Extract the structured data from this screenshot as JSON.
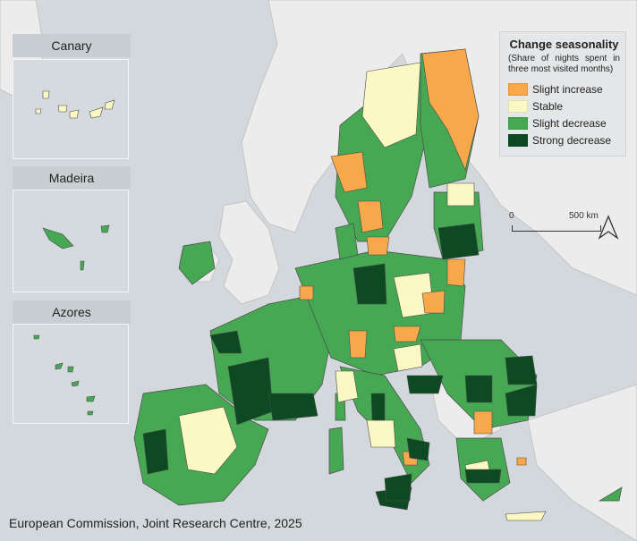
{
  "insets": [
    {
      "title": "Canary"
    },
    {
      "title": "Madeira"
    },
    {
      "title": "Azores"
    }
  ],
  "legend": {
    "title": "Change seasonality",
    "subtitle": "(Share of nights spent in three most visited months)",
    "items": [
      {
        "label": "Slight increase",
        "color": "#f7a84a"
      },
      {
        "label": "Stable",
        "color": "#fcf8c4"
      },
      {
        "label": "Slight decrease",
        "color": "#47a854"
      },
      {
        "label": "Strong decrease",
        "color": "#0d4a23"
      }
    ]
  },
  "scale_bar": {
    "start_label": "0",
    "end_label": "500 km"
  },
  "credit": "European Commission, Joint Research Centre, 2025",
  "colors": {
    "sea": "#d3d8dc",
    "non_eu_land": "#ececec",
    "border": "#4a4a4a"
  }
}
